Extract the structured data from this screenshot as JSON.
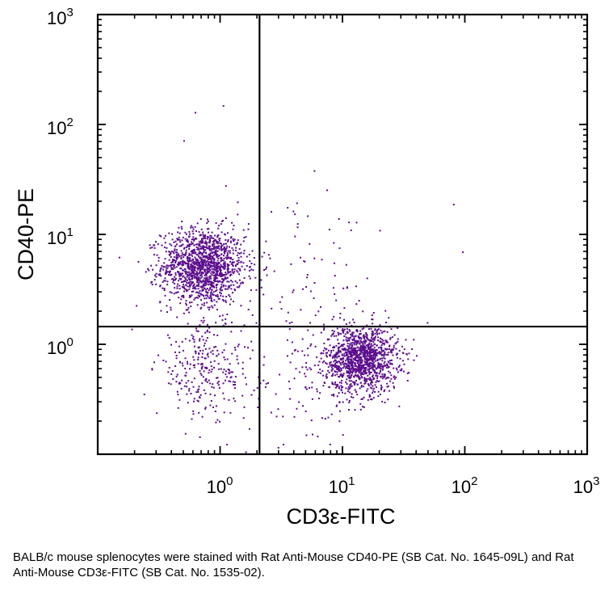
{
  "chart_data": {
    "type": "scatter",
    "xlabel": "CD3ε-FITC",
    "ylabel": "CD40-PE",
    "xscale": "log",
    "yscale": "log",
    "xlim": [
      0.1,
      1000
    ],
    "ylim": [
      0.1,
      1000
    ],
    "x_ticks": [
      {
        "base": "10",
        "exp": "0"
      },
      {
        "base": "10",
        "exp": "1"
      },
      {
        "base": "10",
        "exp": "2"
      },
      {
        "base": "10",
        "exp": "3"
      }
    ],
    "y_ticks": [
      {
        "base": "10",
        "exp": "0"
      },
      {
        "base": "10",
        "exp": "1"
      },
      {
        "base": "10",
        "exp": "2"
      },
      {
        "base": "10",
        "exp": "3"
      }
    ],
    "gates": {
      "x": 2.1,
      "y": 1.45
    },
    "point_color": "#5b0d8c",
    "clusters": [
      {
        "center": [
          0.72,
          5.2
        ],
        "spread": [
          0.17,
          0.17
        ],
        "count": 1400
      },
      {
        "center": [
          14,
          0.75
        ],
        "spread": [
          0.15,
          0.15
        ],
        "count": 1250
      },
      {
        "center": [
          0.75,
          0.6
        ],
        "spread": [
          0.2,
          0.22
        ],
        "count": 280
      },
      {
        "center": [
          4.5,
          3.5
        ],
        "spread": [
          0.3,
          0.35
        ],
        "count": 90
      },
      {
        "center": [
          6,
          0.4
        ],
        "spread": [
          0.3,
          0.25
        ],
        "count": 110
      }
    ],
    "outliers": [
      [
        0.62,
        130
      ],
      [
        1.05,
        150
      ],
      [
        0.5,
        72
      ],
      [
        80,
        19
      ],
      [
        95,
        7
      ],
      [
        20,
        11
      ],
      [
        1.1,
        28
      ]
    ],
    "grid": false
  },
  "caption": "BALB/c mouse splenocytes were stained with Rat Anti-Mouse CD40-PE (SB Cat. No. 1645-09L) and Rat Anti-Mouse CD3ε-FITC (SB Cat. No. 1535-02)."
}
